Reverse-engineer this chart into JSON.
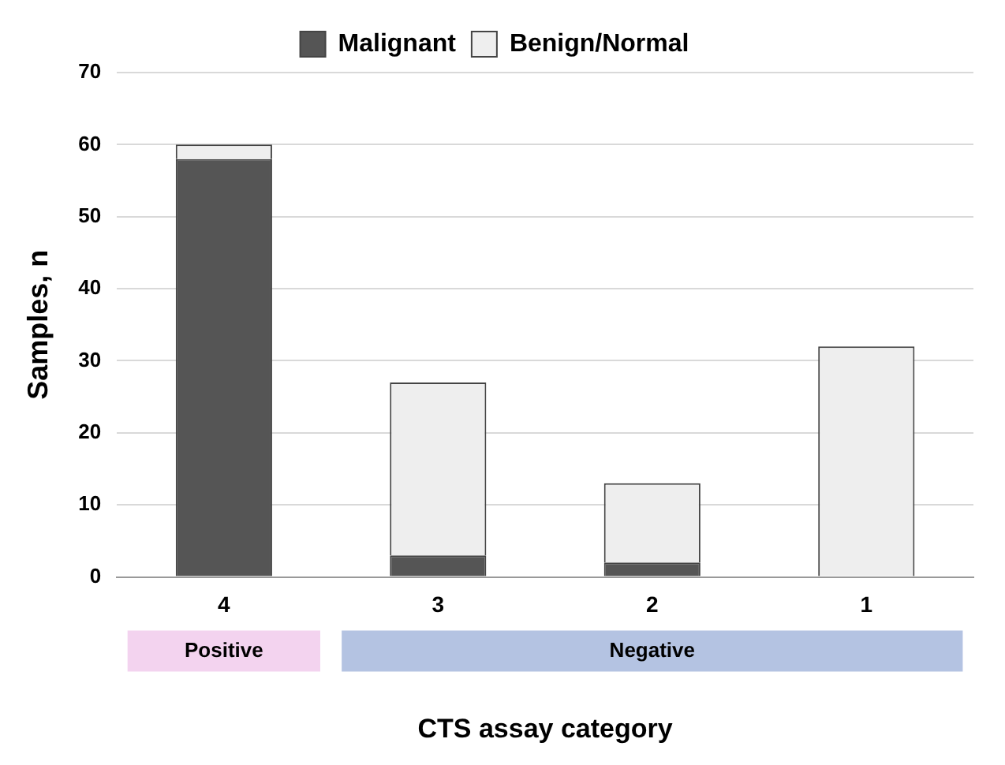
{
  "chart_data": {
    "type": "bar",
    "stacked": true,
    "xlabel": "CTS assay category",
    "ylabel": "Samples, n",
    "categories": [
      "4",
      "3",
      "2",
      "1"
    ],
    "series": [
      {
        "name": "Malignant",
        "color": "#555555",
        "values": [
          58,
          3,
          2,
          0
        ]
      },
      {
        "name": "Benign/Normal",
        "color": "#eeeeee",
        "values": [
          2,
          24,
          11,
          32
        ]
      }
    ],
    "ylim": [
      0,
      70
    ],
    "yticks": [
      0,
      10,
      20,
      30,
      40,
      50,
      60,
      70
    ],
    "grid": "y",
    "legend": "top",
    "annotations": [
      "Positive",
      "Negative"
    ]
  }
}
